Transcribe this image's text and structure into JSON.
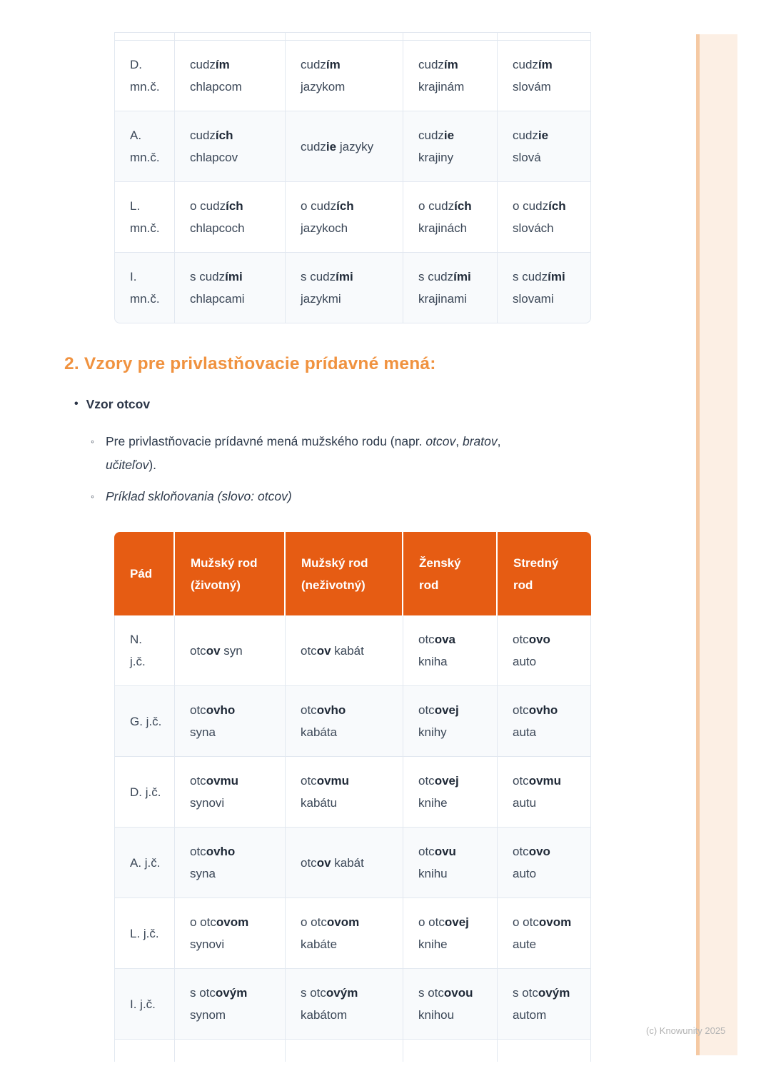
{
  "document": {
    "heading2": "2. Vzory pre privlastňovacie prídavné mená:",
    "vzor_bullet": "Vzor otcov",
    "sub_bullet_1": "Pre privlastňovacie prídavné mená mužského rodu (napr. *otcov*, *bratov*,\n*učiteľov*).",
    "sub_bullet_2": "*Príklad skloňovania (slovo: otcov)*",
    "copyright": "(c) Knowunity 2025"
  },
  "bullets": {
    "level1_glyph": "•",
    "level2_glyph": "◦"
  },
  "tables": {
    "cudzi_plural": {
      "description_rows": [
        {
          "label": "D.\nmn.č.",
          "cells": [
            "cudz**ím**\nchlapcom",
            "cudz**ím**\njazykom",
            "cudz**ím**\nkrajinám",
            "cudz**ím**\nslovám"
          ]
        },
        {
          "label": "A.\nmn.č.",
          "cells": [
            "cudz**ích**\nchlapcov",
            "cudz**ie** jazyky",
            "cudz**ie**\nkrajiny",
            "cudz**ie**\nslová"
          ]
        },
        {
          "label": "L.\nmn.č.",
          "cells": [
            "o cudz**ích**\nchlapcoch",
            "o cudz**ích**\njazykoch",
            "o cudz**ích**\nkrajinách",
            "o cudz**ích**\nslovách"
          ]
        },
        {
          "label": "I.\nmn.č.",
          "cells": [
            "s cudz**ími**\nchlapcami",
            "s cudz**ími**\njazykmi",
            "s cudz**ími**\nkrajinami",
            "s cudz**ími**\nslovami"
          ]
        }
      ]
    },
    "otcov": {
      "headers": [
        "Pád",
        "Mužský rod\n(životný)",
        "Mužský rod\n(neživotný)",
        "Ženský\nrod",
        "Stredný\nrod"
      ],
      "rows": [
        {
          "label": "N.\nj.č.",
          "cells": [
            "otc**ov** syn",
            "otc**ov** kabát",
            "otc**ova**\nkniha",
            "otc**ovo**\nauto"
          ]
        },
        {
          "label": "G. j.č.",
          "cells": [
            "otc**ovho**\nsyna",
            "otc**ovho**\nkabáta",
            "otc**ovej**\nknihy",
            "otc**ovho**\nauta"
          ]
        },
        {
          "label": "D. j.č.",
          "cells": [
            "otc**ovmu**\nsynovi",
            "otc**ovmu**\nkabátu",
            "otc**ovej**\nknihe",
            "otc**ovmu**\nautu"
          ]
        },
        {
          "label": "A. j.č.",
          "cells": [
            "otc**ovho**\nsyna",
            "otc**ov** kabát",
            "otc**ovu**\nknihu",
            "otc**ovo**\nauto"
          ]
        },
        {
          "label": "L. j.č.",
          "cells": [
            "o otc**ovom**\nsynovi",
            "o otc**ovom**\nkabáte",
            "o otc**ovej**\nknihe",
            "o otc**ovom**\naute"
          ]
        },
        {
          "label": "I. j.č.",
          "cells": [
            "s otc**ovým**\nsynom",
            "s otc**ovým**\nkabátom",
            "s otc**ovou**\nknihou",
            "s otc**ovým**\nautom"
          ]
        }
      ],
      "has_trailing_cutoff_row": true
    }
  },
  "colors": {
    "table_header_bg": "#e65c13",
    "heading_orange": "#f0923f",
    "row_stripe": "#f8fafc",
    "border": "#e2e8f0",
    "text": "#3b4757",
    "text_bold": "#1f2937",
    "side_band_fill": "#fcefe4",
    "side_band_edge": "#f5c9a3",
    "copyright_gray": "#b3b3b3"
  }
}
